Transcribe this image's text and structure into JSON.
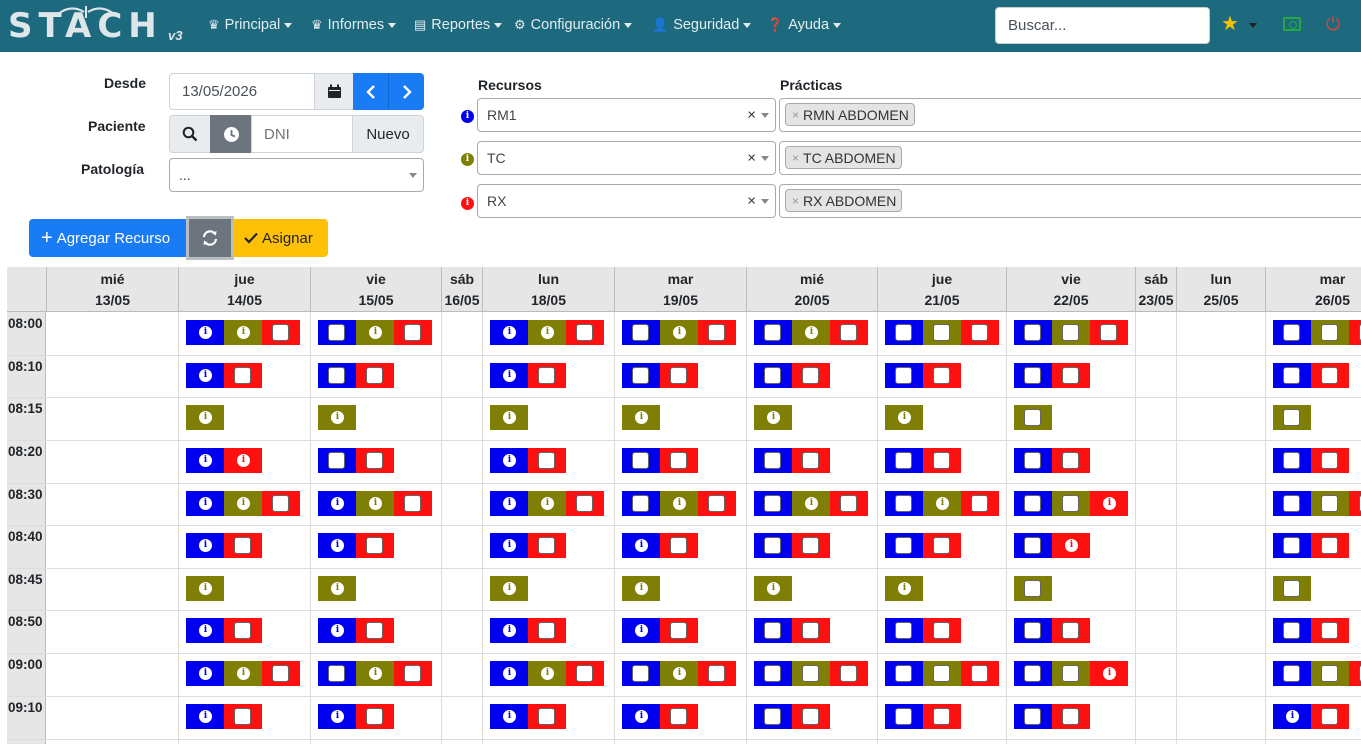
{
  "navbar": {
    "logo_text": "STACH",
    "logo_version": "v3",
    "menus": [
      {
        "label": "Principal",
        "icon": "crown-icon"
      },
      {
        "label": "Informes",
        "icon": "crown-icon"
      },
      {
        "label": "Reportes",
        "icon": "document-icon"
      },
      {
        "label": "Configuración",
        "icon": "gears-icon"
      },
      {
        "label": "Seguridad",
        "icon": "user-lock-icon"
      },
      {
        "label": "Ayuda",
        "icon": "question-circle-icon"
      }
    ],
    "search_placeholder": "Buscar...",
    "icons": [
      "star-icon",
      "money-bill-icon",
      "power-icon"
    ]
  },
  "form": {
    "desde_label": "Desde",
    "desde_value": "13/05/2026",
    "paciente_label": "Paciente",
    "dni_placeholder": "DNI",
    "nuevo_label": "Nuevo",
    "patologia_label": "Patología",
    "patologia_value": "...",
    "recursos_label": "Recursos",
    "practicas_label": "Prácticas",
    "resources": [
      {
        "name": "RM1",
        "practice": "RMN ABDOMEN",
        "color": "#0000ee"
      },
      {
        "name": "TC",
        "practice": "TC ABDOMEN",
        "color": "#7f7f05"
      },
      {
        "name": "RX",
        "practice": "RX ABDOMEN",
        "color": "#ff1010"
      }
    ],
    "clear_symbol": "×",
    "agregar_label": "Agregar Recurso",
    "asignar_label": "Asignar"
  },
  "colors": {
    "rm1": "#0000ee",
    "tc": "#7f7f05",
    "rx": "#ff1010",
    "navbar": "#1d6a7e",
    "primary": "#1a7cf5",
    "warning": "#ffc107"
  },
  "schedule": {
    "days": [
      {
        "dow": "mié",
        "date": "13/05"
      },
      {
        "dow": "jue",
        "date": "14/05"
      },
      {
        "dow": "vie",
        "date": "15/05"
      },
      {
        "dow": "sáb",
        "date": "16/05"
      },
      {
        "dow": "lun",
        "date": "18/05"
      },
      {
        "dow": "mar",
        "date": "19/05"
      },
      {
        "dow": "mié",
        "date": "20/05"
      },
      {
        "dow": "jue",
        "date": "21/05"
      },
      {
        "dow": "vie",
        "date": "22/05"
      },
      {
        "dow": "sáb",
        "date": "23/05"
      },
      {
        "dow": "lun",
        "date": "25/05"
      },
      {
        "dow": "mar",
        "date": "26/05"
      }
    ],
    "times": [
      "08:00",
      "08:10",
      "08:15",
      "08:20",
      "08:30",
      "08:40",
      "08:45",
      "08:50",
      "09:00",
      "09:10"
    ],
    "slots": [
      [
        "",
        "Bi Oi R",
        "B Oi R",
        "",
        "Bi Oi R",
        "B Oi R",
        "B Oi R",
        "B O R",
        "B O R",
        "",
        "",
        "B O R"
      ],
      [
        "",
        "Bi R",
        "B R",
        "",
        "Bi R",
        "B R",
        "B R",
        "B R",
        "B R",
        "",
        "",
        "B R"
      ],
      [
        "",
        "Oi",
        "Oi",
        "",
        "Oi",
        "Oi",
        "Oi",
        "Oi",
        "O",
        "",
        "",
        "O"
      ],
      [
        "",
        "Bi Ri",
        "B R",
        "",
        "Bi R",
        "B R",
        "B R",
        "B R",
        "B R",
        "",
        "",
        "B R"
      ],
      [
        "",
        "Bi Oi R",
        "Bi Oi R",
        "",
        "Bi Oi R",
        "B Oi R",
        "B Oi R",
        "B Oi R",
        "B O Ri",
        "",
        "",
        "B O R"
      ],
      [
        "",
        "Bi R",
        "Bi R",
        "",
        "Bi R",
        "Bi R",
        "B R",
        "B R",
        "B Ri",
        "",
        "",
        "B R"
      ],
      [
        "",
        "Oi",
        "Oi",
        "",
        "Oi",
        "Oi",
        "Oi",
        "Oi",
        "O",
        "",
        "",
        "O"
      ],
      [
        "",
        "Bi R",
        "Bi R",
        "",
        "Bi R",
        "Bi R",
        "B R",
        "B R",
        "B R",
        "",
        "",
        "B R"
      ],
      [
        "",
        "Bi Oi R",
        "B Oi R",
        "",
        "Bi Oi R",
        "B Oi R",
        "B O R",
        "B O R",
        "B O Ri",
        "",
        "",
        "B O R"
      ],
      [
        "",
        "Bi R",
        "Bi R",
        "",
        "Bi R",
        "Bi R",
        "B R",
        "B R",
        "B R",
        "",
        "",
        "Bi R"
      ]
    ]
  }
}
